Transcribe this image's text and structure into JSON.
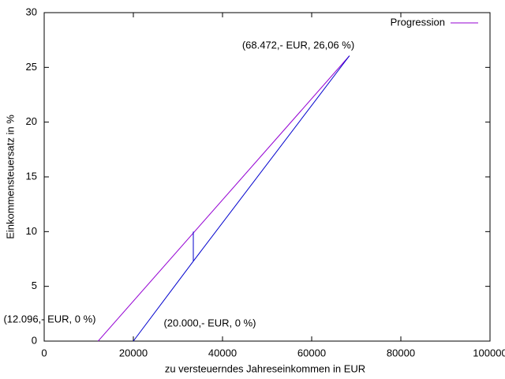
{
  "chart_data": {
    "type": "line",
    "xlabel": "zu versteuerndes Jahreseinkommen in EUR",
    "ylabel": "Einkommensteuersatz in %",
    "xlim": [
      0,
      100000
    ],
    "xticks": [
      0,
      20000,
      40000,
      60000,
      80000,
      100000
    ],
    "ylim": [
      0,
      30
    ],
    "yticks": [
      0,
      5,
      10,
      15,
      20,
      25,
      30
    ],
    "grid": false,
    "legend": "upper right",
    "series": [
      {
        "name": "Progression",
        "color": "#9400d3",
        "x": [
          12096,
          68472
        ],
        "values": [
          0,
          26.06
        ]
      },
      {
        "color": "#0000cd",
        "x": [
          20000,
          33450,
          33450,
          null,
          33450,
          68472
        ],
        "values": [
          0,
          7.3,
          10,
          null,
          7.3,
          26.06
        ]
      }
    ],
    "annotations": [
      "(68.472,- EUR, 26,06 %)",
      "(12.096,- EUR, 0 %)",
      "(20.000,- EUR, 0 %)"
    ]
  }
}
